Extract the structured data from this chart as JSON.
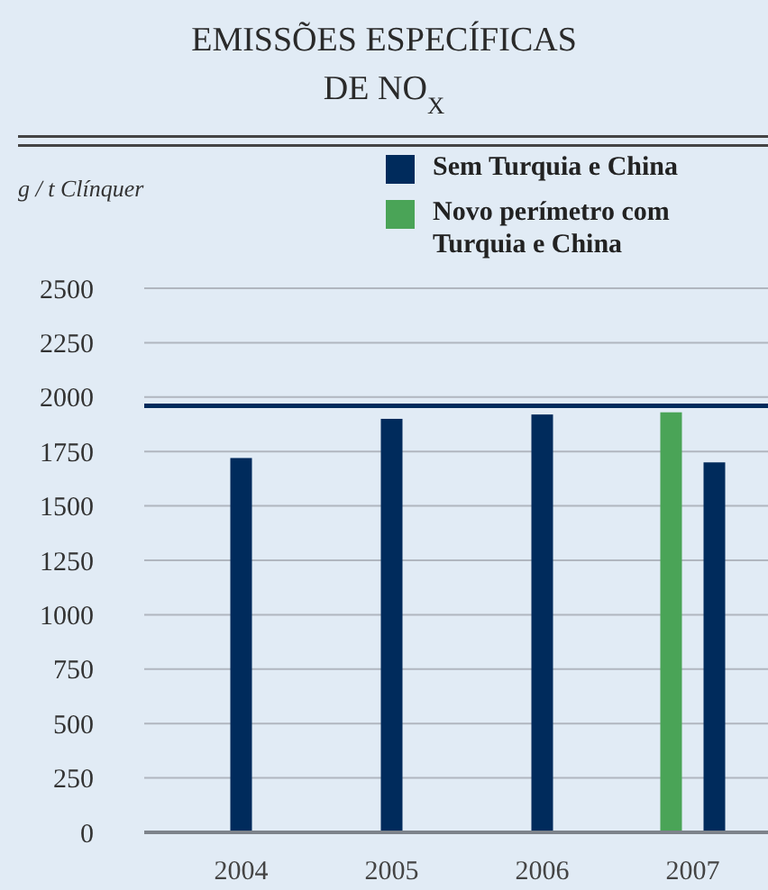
{
  "chart_data": {
    "type": "bar",
    "title": "EMISSÕES ESPECÍFICAS DE NO$_{X}$",
    "ylabel": "g / t Clínquer",
    "categories": [
      "2004",
      "2005",
      "2006",
      "2007"
    ],
    "series": [
      {
        "name": "Sem Turquia e China",
        "color": "#002b5c",
        "values": [
          1720,
          1900,
          1920,
          1700
        ]
      },
      {
        "name": "Novo perímetro com Turquia e China",
        "color": "#4aa457",
        "values": [
          null,
          null,
          null,
          1930
        ]
      }
    ],
    "ylim": [
      0,
      2500
    ],
    "yticks": [
      0,
      250,
      500,
      750,
      1000,
      1250,
      1500,
      1750,
      2000,
      2250,
      2500
    ],
    "grid": "y",
    "legend": "top right",
    "ref_lines": [
      {
        "axis": "y",
        "value": 1960,
        "color": "#002b5c"
      }
    ]
  }
}
